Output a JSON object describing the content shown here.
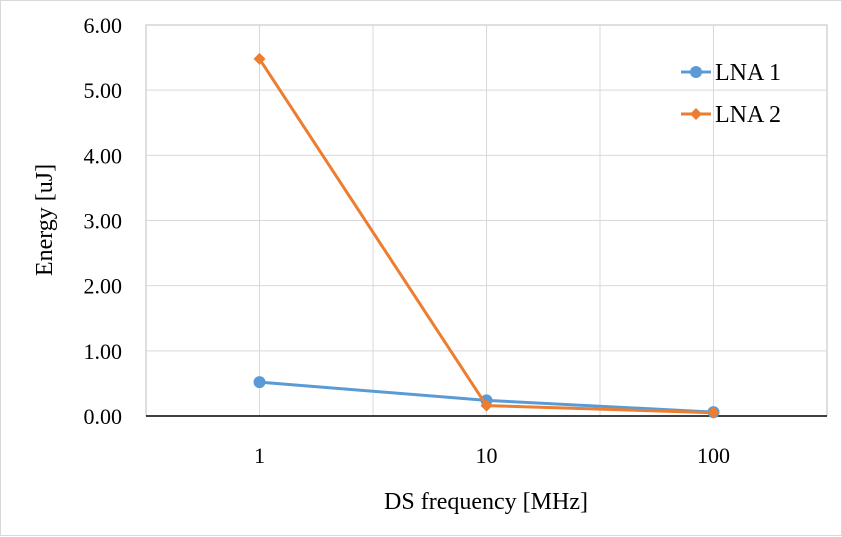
{
  "chart_data": {
    "type": "line",
    "title": "",
    "xlabel": "DS frequency [MHz]",
    "ylabel": "Energy [uJ]",
    "x": [
      1,
      10,
      100
    ],
    "x_tick_labels": [
      "1",
      "10",
      "100"
    ],
    "x_scale": "log",
    "ylim": [
      0,
      6
    ],
    "y_tick_labels": [
      "0.00",
      "1.00",
      "2.00",
      "3.00",
      "4.00",
      "5.00",
      "6.00"
    ],
    "grid": true,
    "legend_position": "top-right",
    "series": [
      {
        "name": "LNA 1",
        "values": [
          0.52,
          0.24,
          0.06
        ],
        "color": "#5b9bd5",
        "marker": "circle"
      },
      {
        "name": "LNA 2",
        "values": [
          5.48,
          0.16,
          0.05
        ],
        "color": "#ed7d31",
        "marker": "diamond"
      }
    ]
  }
}
